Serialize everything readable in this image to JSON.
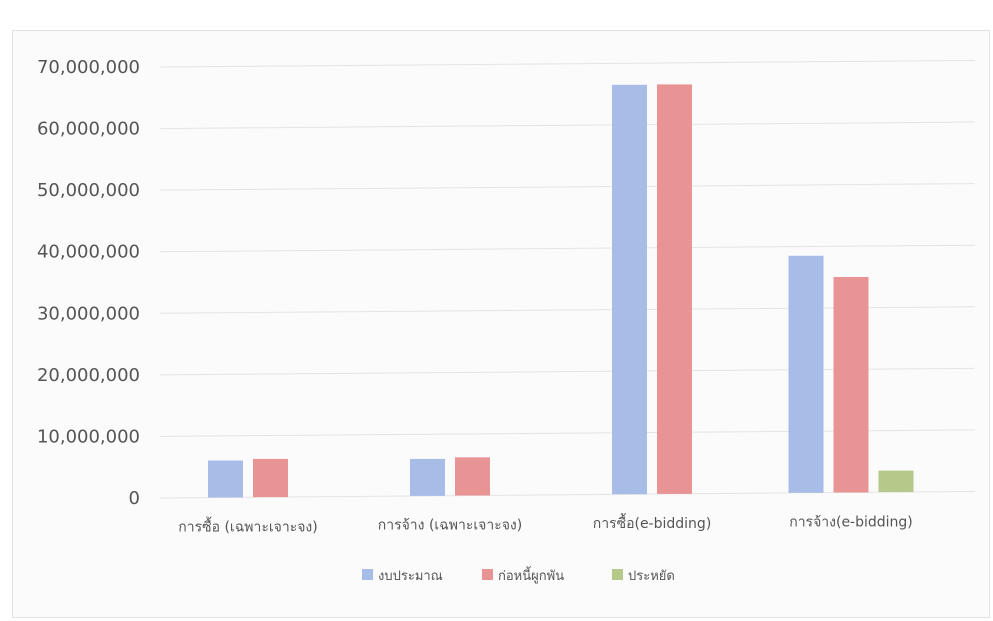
{
  "chart_data": {
    "type": "bar",
    "categories": [
      "การซื้อ (เฉพาะเจาะจง)",
      "การจ้าง (เฉพาะเจาะจง)",
      "การซื้อ(e-bidding)",
      "การจ้าง(e-bidding)"
    ],
    "series": [
      {
        "name": "งบประมาณ",
        "color": "#a7bde8",
        "values": [
          6000000,
          6000000,
          66500000,
          38500000
        ]
      },
      {
        "name": "ก่อหนี้ผูกพัน",
        "color": "#e89394",
        "values": [
          6200000,
          6200000,
          66500000,
          35000000
        ]
      },
      {
        "name": "ประหยัด",
        "color": "#b7c98a",
        "values": [
          null,
          null,
          null,
          3500000
        ]
      }
    ],
    "yticks": [
      "0",
      "10,000,000",
      "20,000,000",
      "30,000,000",
      "40,000,000",
      "50,000,000",
      "60,000,000",
      "70,000,000"
    ],
    "ylim": [
      0,
      70000000
    ],
    "grid": true,
    "legend_position": "bottom"
  }
}
